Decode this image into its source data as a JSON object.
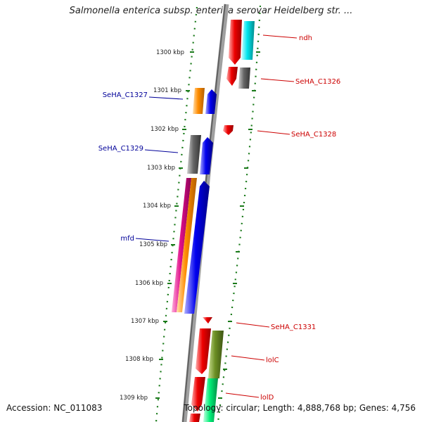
{
  "header": {
    "title": "Salmonella enterica subsp. enterica serovar Heidelberg str. ..."
  },
  "footer": {
    "accession": "Accession: NC_011083",
    "summary": "Topology: circular; Length: 4,888,768 bp; Genes: 4,756"
  },
  "kbp_ticks": [
    "1300 kbp",
    "1301 kbp",
    "1302 kbp",
    "1303 kbp",
    "1304 kbp",
    "1305 kbp",
    "1306 kbp",
    "1307 kbp",
    "1308 kbp",
    "1309 kbp"
  ],
  "forward_labels": [
    "ndh",
    "SeHA_C1326",
    "SeHA_C1328",
    "SeHA_C1331",
    "lolC",
    "lolD"
  ],
  "reverse_labels": [
    "SeHA_C1327",
    "SeHA_C1329",
    "mfd"
  ],
  "colors": {
    "forward_label": "#cc0000",
    "reverse_label": "#000099",
    "backbone": "#888888",
    "tick_green": "#1a7a1a",
    "red": "#ee0000",
    "cyan": "#00e5ee",
    "gray": "#666666",
    "orange": "#ff8c00",
    "blue": "#0000ee",
    "magenta": "#e0108a",
    "olive": "#6b8e23",
    "spring_green": "#00ee76"
  }
}
